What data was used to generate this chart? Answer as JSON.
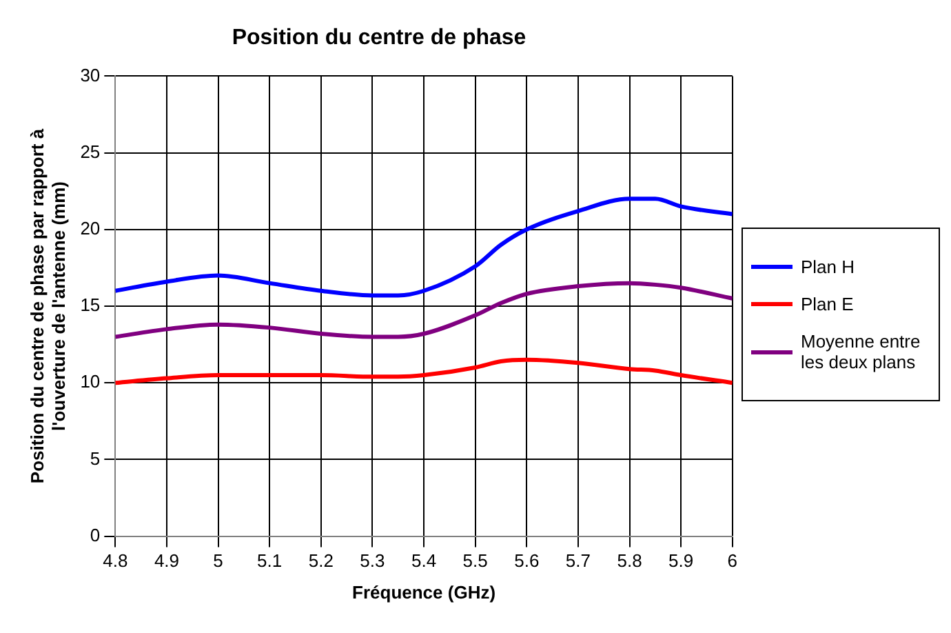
{
  "chart_data": {
    "type": "line",
    "title": "Position du centre de phase",
    "xlabel": "Fréquence (GHz)",
    "ylabel": "Position du centre de phase par rapport à l'ouverture de l'antenne (mm)",
    "x": [
      4.8,
      4.9,
      5.0,
      5.1,
      5.2,
      5.3,
      5.35,
      5.4,
      5.5,
      5.55,
      5.6,
      5.7,
      5.8,
      5.85,
      5.9,
      6.0
    ],
    "series": [
      {
        "name": "Plan H",
        "color": "#0000ff",
        "values": [
          16,
          16.6,
          17,
          16.5,
          16,
          15.7,
          15.7,
          16,
          17.6,
          19,
          20,
          21.2,
          22,
          22,
          21.5,
          21
        ]
      },
      {
        "name": "Plan E",
        "color": "#ff0000",
        "values": [
          10,
          10.3,
          10.5,
          10.5,
          10.5,
          10.4,
          10.4,
          10.5,
          11,
          11.4,
          11.5,
          11.3,
          10.9,
          10.8,
          10.5,
          10
        ]
      },
      {
        "name": "Moyenne entre les deux plans",
        "color": "#800080",
        "values": [
          13,
          13.5,
          13.8,
          13.6,
          13.2,
          13,
          13,
          13.2,
          14.4,
          15.2,
          15.8,
          16.3,
          16.5,
          16.4,
          16.2,
          15.5
        ]
      }
    ],
    "xlim": [
      4.8,
      6
    ],
    "xticks": [
      4.8,
      4.9,
      5,
      5.1,
      5.2,
      5.3,
      5.4,
      5.5,
      5.6,
      5.7,
      5.8,
      5.9,
      6
    ],
    "ylim": [
      0,
      30
    ],
    "yticks": [
      0,
      5,
      10,
      15,
      20,
      25,
      30
    ],
    "grid": true,
    "legend": "right",
    "marker": "none",
    "line_style": "solid"
  }
}
